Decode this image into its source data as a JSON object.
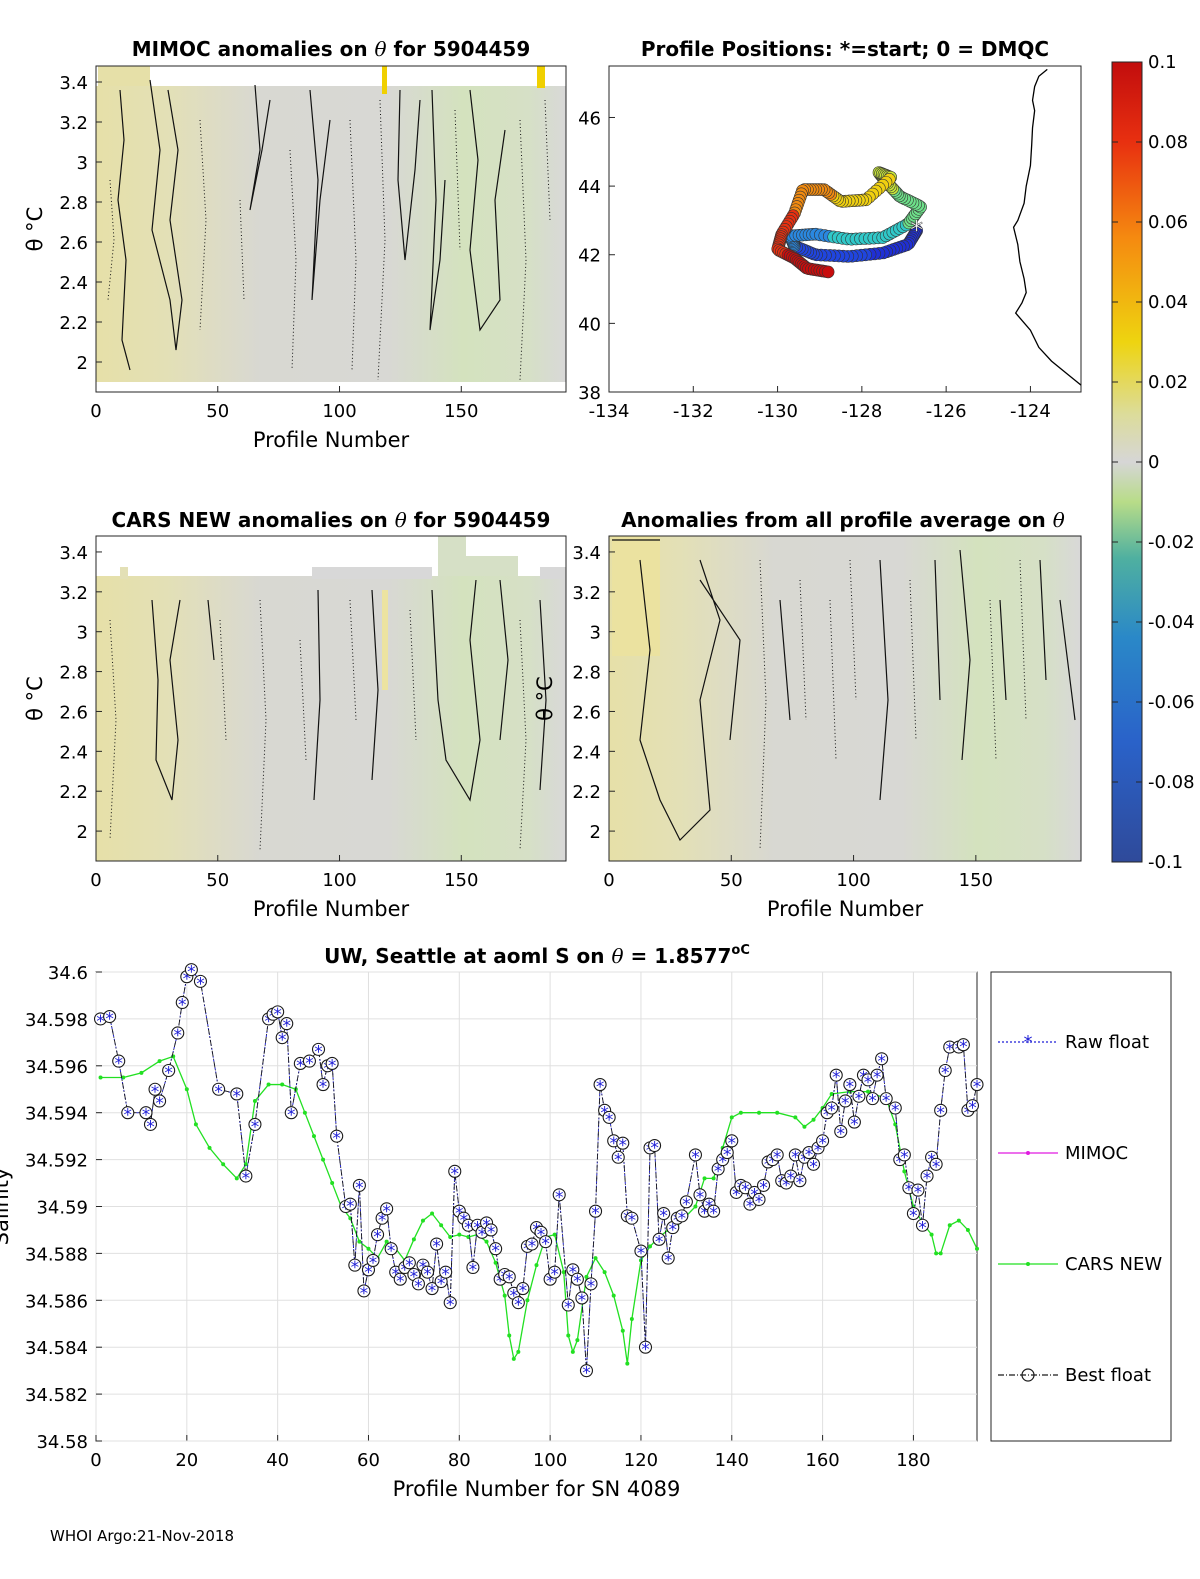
{
  "footer": "WHOI Argo:21-Nov-2018",
  "chart_data": [
    {
      "id": "mimoc",
      "type": "heatmap",
      "title_prefix": "MIMOC anomalies on ",
      "title_theta": "θ",
      "title_suffix": "  for 5904459",
      "xlabel": "Profile Number",
      "ylabel": "θ °C",
      "xlim": [
        0,
        193
      ],
      "ylim": [
        1.85,
        3.48
      ],
      "xticks": [
        "0",
        "50",
        "100",
        "150"
      ],
      "xtick_values": [
        0,
        50,
        100,
        150
      ],
      "yticks": [
        "2",
        "2.2",
        "2.4",
        "2.6",
        "2.8",
        "3",
        "3.2",
        "3.4"
      ],
      "ytick_values": [
        2,
        2.2,
        2.4,
        2.6,
        2.8,
        3,
        3.2,
        3.4
      ]
    },
    {
      "id": "positions",
      "type": "scatter",
      "title": "Profile Positions: *=start; 0 = DMQC",
      "xlim": [
        -134,
        -122.8
      ],
      "ylim": [
        38,
        47.5
      ],
      "xticks": [
        "-134",
        "-132",
        "-130",
        "-128",
        "-126",
        "-124"
      ],
      "xtick_values": [
        -134,
        -132,
        -130,
        -128,
        -126,
        -124
      ],
      "yticks": [
        "38",
        "40",
        "42",
        "44",
        "46"
      ],
      "ytick_values": [
        38,
        40,
        42,
        44,
        46
      ],
      "start": [
        -126.7,
        42.75
      ],
      "coast": [
        [
          -123.6,
          47.4
        ],
        [
          -123.8,
          47.2
        ],
        [
          -123.9,
          46.9
        ],
        [
          -123.95,
          46.5
        ],
        [
          -123.9,
          46.2
        ],
        [
          -123.95,
          45.7
        ],
        [
          -123.97,
          45.2
        ],
        [
          -124.0,
          44.6
        ],
        [
          -124.1,
          44.0
        ],
        [
          -124.15,
          43.5
        ],
        [
          -124.3,
          43.0
        ],
        [
          -124.4,
          42.8
        ],
        [
          -124.3,
          42.3
        ],
        [
          -124.25,
          41.8
        ],
        [
          -124.15,
          41.3
        ],
        [
          -124.1,
          40.9
        ],
        [
          -124.2,
          40.6
        ],
        [
          -124.35,
          40.3
        ],
        [
          -124.0,
          39.8
        ],
        [
          -123.8,
          39.3
        ],
        [
          -123.5,
          38.9
        ],
        [
          -123.1,
          38.5
        ],
        [
          -122.8,
          38.2
        ]
      ]
    },
    {
      "id": "cars",
      "type": "heatmap",
      "title_prefix": "CARS NEW anomalies on ",
      "title_theta": "θ",
      "title_suffix": " for 5904459",
      "xlabel": "Profile Number",
      "ylabel": "θ °C",
      "xlim": [
        0,
        193
      ],
      "ylim": [
        1.85,
        3.48
      ],
      "xticks": [
        "0",
        "50",
        "100",
        "150"
      ],
      "xtick_values": [
        0,
        50,
        100,
        150
      ],
      "yticks": [
        "2",
        "2.2",
        "2.4",
        "2.6",
        "2.8",
        "3",
        "3.2",
        "3.4"
      ],
      "ytick_values": [
        2,
        2.2,
        2.4,
        2.6,
        2.8,
        3,
        3.2,
        3.4
      ]
    },
    {
      "id": "allavg",
      "type": "heatmap",
      "title_prefix": "Anomalies from all profile average on ",
      "title_theta": "θ",
      "title_suffix": "",
      "xlabel": "Profile Number",
      "ylabel": "θ °C",
      "xlim": [
        0,
        193
      ],
      "ylim": [
        1.85,
        3.48
      ],
      "xticks": [
        "0",
        "50",
        "100",
        "150"
      ],
      "xtick_values": [
        0,
        50,
        100,
        150
      ],
      "yticks": [
        "2",
        "2.2",
        "2.4",
        "2.6",
        "2.8",
        "3",
        "3.2",
        "3.4"
      ],
      "ytick_values": [
        2,
        2.2,
        2.4,
        2.6,
        2.8,
        3,
        3.2,
        3.4
      ]
    },
    {
      "id": "colorbar",
      "type": "colorbar",
      "range": [
        -0.1,
        0.1
      ],
      "tick_labels": [
        "0.1",
        "0.08",
        "0.06",
        "0.04",
        "0.02",
        "0",
        "-0.02",
        "-0.04",
        "-0.06",
        "-0.08",
        "-0.1"
      ],
      "tick_values": [
        0.1,
        0.08,
        0.06,
        0.04,
        0.02,
        0,
        -0.02,
        -0.04,
        -0.06,
        -0.08,
        -0.1
      ]
    },
    {
      "id": "salinity",
      "type": "line",
      "title_prefix": "UW, Seattle at aoml S on ",
      "title_theta": "θ",
      "title_suffix": " = 1.8577",
      "title_unit": "oC",
      "xlabel": "Profile Number for SN 4089",
      "ylabel": "Salinity",
      "xlim": [
        0,
        194
      ],
      "ylim": [
        34.58,
        34.6
      ],
      "xticks": [
        "0",
        "20",
        "40",
        "60",
        "80",
        "100",
        "120",
        "140",
        "160",
        "180"
      ],
      "xtick_values": [
        0,
        20,
        40,
        60,
        80,
        100,
        120,
        140,
        160,
        180
      ],
      "yticks": [
        "34.58",
        "34.582",
        "34.584",
        "34.586",
        "34.588",
        "34.59",
        "34.592",
        "34.594",
        "34.596",
        "34.598",
        "34.6"
      ],
      "ytick_values": [
        34.58,
        34.582,
        34.584,
        34.586,
        34.588,
        34.59,
        34.592,
        34.594,
        34.596,
        34.598,
        34.6
      ],
      "legend": [
        "Raw float",
        "MIMOC",
        "CARS NEW",
        "Best float"
      ],
      "legend_colors": [
        "#1f1fd6",
        "#e01be0",
        "#22e022",
        "#1a1a1a"
      ],
      "cars_series": [
        [
          1,
          34.5955
        ],
        [
          6,
          34.5955
        ],
        [
          10,
          34.5957
        ],
        [
          14,
          34.5962
        ],
        [
          17,
          34.5964
        ],
        [
          20,
          34.595
        ],
        [
          22,
          34.5935
        ],
        [
          25,
          34.5925
        ],
        [
          28,
          34.5918
        ],
        [
          31,
          34.5912
        ],
        [
          33,
          34.5918
        ],
        [
          35,
          34.5945
        ],
        [
          38,
          34.5952
        ],
        [
          41,
          34.5952
        ],
        [
          44,
          34.595
        ],
        [
          46,
          34.594
        ],
        [
          48,
          34.593
        ],
        [
          50,
          34.592
        ],
        [
          52,
          34.591
        ],
        [
          54,
          34.59
        ],
        [
          56,
          34.5895
        ],
        [
          58,
          34.5885
        ],
        [
          60,
          34.5882
        ],
        [
          62,
          34.5878
        ],
        [
          64,
          34.5885
        ],
        [
          66,
          34.5882
        ],
        [
          68,
          34.5877
        ],
        [
          70,
          34.5886
        ],
        [
          72,
          34.5894
        ],
        [
          74,
          34.5897
        ],
        [
          76,
          34.5892
        ],
        [
          78,
          34.5887
        ],
        [
          80,
          34.5888
        ],
        [
          82,
          34.5887
        ],
        [
          84,
          34.5888
        ],
        [
          86,
          34.5885
        ],
        [
          88,
          34.5876
        ],
        [
          90,
          34.5862
        ],
        [
          91,
          34.5845
        ],
        [
          92,
          34.5835
        ],
        [
          93,
          34.5838
        ],
        [
          95,
          34.586
        ],
        [
          97,
          34.5875
        ],
        [
          99,
          34.5887
        ],
        [
          101,
          34.5888
        ],
        [
          103,
          34.5872
        ],
        [
          104,
          34.5845
        ],
        [
          105,
          34.5838
        ],
        [
          106,
          34.5843
        ],
        [
          108,
          34.587
        ],
        [
          110,
          34.5878
        ],
        [
          112,
          34.5872
        ],
        [
          114,
          34.5862
        ],
        [
          116,
          34.5847
        ],
        [
          117,
          34.5833
        ],
        [
          118,
          34.5852
        ],
        [
          120,
          34.5877
        ],
        [
          122,
          34.5883
        ],
        [
          124,
          34.5887
        ],
        [
          126,
          34.589
        ],
        [
          128,
          34.5892
        ],
        [
          130,
          34.5896
        ],
        [
          132,
          34.59
        ],
        [
          134,
          34.5912
        ],
        [
          136,
          34.5912
        ],
        [
          138,
          34.5925
        ],
        [
          140,
          34.5938
        ],
        [
          142,
          34.594
        ],
        [
          146,
          34.594
        ],
        [
          150,
          34.594
        ],
        [
          154,
          34.5938
        ],
        [
          156,
          34.5934
        ],
        [
          158,
          34.5937
        ],
        [
          160,
          34.5942
        ],
        [
          162,
          34.5948
        ],
        [
          166,
          34.5949
        ],
        [
          170,
          34.5949
        ],
        [
          174,
          34.5946
        ],
        [
          176,
          34.5935
        ],
        [
          178,
          34.5915
        ],
        [
          180,
          34.59
        ],
        [
          182,
          34.5893
        ],
        [
          184,
          34.5888
        ],
        [
          185,
          34.588
        ],
        [
          186,
          34.588
        ],
        [
          188,
          34.5892
        ],
        [
          190,
          34.5894
        ],
        [
          192,
          34.589
        ],
        [
          194,
          34.5882
        ]
      ],
      "float_series": [
        [
          1,
          34.598
        ],
        [
          3,
          34.5981
        ],
        [
          5,
          34.5962
        ],
        [
          7,
          34.594
        ],
        [
          11,
          34.594
        ],
        [
          12,
          34.5935
        ],
        [
          13,
          34.595
        ],
        [
          14,
          34.5945
        ],
        [
          16,
          34.5958
        ],
        [
          18,
          34.5974
        ],
        [
          19,
          34.5987
        ],
        [
          20,
          34.5998
        ],
        [
          21,
          34.6001
        ],
        [
          23,
          34.5996
        ],
        [
          27,
          34.595
        ],
        [
          31,
          34.5948
        ],
        [
          33,
          34.5913
        ],
        [
          35,
          34.5935
        ],
        [
          38,
          34.598
        ],
        [
          39,
          34.5982
        ],
        [
          40,
          34.5983
        ],
        [
          41,
          34.5972
        ],
        [
          42,
          34.5978
        ],
        [
          43,
          34.594
        ],
        [
          45,
          34.5961
        ],
        [
          47,
          34.5962
        ],
        [
          49,
          34.5967
        ],
        [
          50,
          34.5952
        ],
        [
          51,
          34.596
        ],
        [
          52,
          34.5961
        ],
        [
          53,
          34.593
        ],
        [
          55,
          34.59
        ],
        [
          56,
          34.5901
        ],
        [
          57,
          34.5875
        ],
        [
          58,
          34.5909
        ],
        [
          59,
          34.5864
        ],
        [
          60,
          34.5873
        ],
        [
          61,
          34.5877
        ],
        [
          62,
          34.5888
        ],
        [
          63,
          34.5895
        ],
        [
          64,
          34.5899
        ],
        [
          65,
          34.5882
        ],
        [
          66,
          34.5872
        ],
        [
          67,
          34.5869
        ],
        [
          68,
          34.5874
        ],
        [
          69,
          34.5876
        ],
        [
          70,
          34.5871
        ],
        [
          71,
          34.5867
        ],
        [
          72,
          34.5875
        ],
        [
          73,
          34.5872
        ],
        [
          74,
          34.5865
        ],
        [
          75,
          34.5884
        ],
        [
          76,
          34.5868
        ],
        [
          77,
          34.5872
        ],
        [
          78,
          34.5859
        ],
        [
          79,
          34.5915
        ],
        [
          80,
          34.5898
        ],
        [
          81,
          34.5895
        ],
        [
          82,
          34.5892
        ],
        [
          83,
          34.5874
        ],
        [
          84,
          34.5892
        ],
        [
          85,
          34.5889
        ],
        [
          86,
          34.5893
        ],
        [
          87,
          34.589
        ],
        [
          88,
          34.5882
        ],
        [
          89,
          34.5869
        ],
        [
          90,
          34.5871
        ],
        [
          91,
          34.587
        ],
        [
          92,
          34.5863
        ],
        [
          93,
          34.5859
        ],
        [
          94,
          34.5865
        ],
        [
          95,
          34.5883
        ],
        [
          96,
          34.5884
        ],
        [
          97,
          34.5891
        ],
        [
          98,
          34.5889
        ],
        [
          99,
          34.5885
        ],
        [
          100,
          34.5869
        ],
        [
          101,
          34.5872
        ],
        [
          102,
          34.5905
        ],
        [
          104,
          34.5858
        ],
        [
          105,
          34.5873
        ],
        [
          106,
          34.5869
        ],
        [
          107,
          34.5861
        ],
        [
          108,
          34.583
        ],
        [
          109,
          34.5867
        ],
        [
          110,
          34.5898
        ],
        [
          111,
          34.5952
        ],
        [
          112,
          34.5941
        ],
        [
          113,
          34.5938
        ],
        [
          114,
          34.5928
        ],
        [
          115,
          34.5921
        ],
        [
          116,
          34.5927
        ],
        [
          117,
          34.5896
        ],
        [
          118,
          34.5895
        ],
        [
          120,
          34.5881
        ],
        [
          121,
          34.584
        ],
        [
          122,
          34.5925
        ],
        [
          123,
          34.5926
        ],
        [
          124,
          34.5886
        ],
        [
          125,
          34.5897
        ],
        [
          126,
          34.5878
        ],
        [
          127,
          34.5891
        ],
        [
          128,
          34.5895
        ],
        [
          129,
          34.5896
        ],
        [
          130,
          34.5902
        ],
        [
          132,
          34.5922
        ],
        [
          133,
          34.5905
        ],
        [
          134,
          34.5898
        ],
        [
          135,
          34.5901
        ],
        [
          136,
          34.5898
        ],
        [
          137,
          34.5916
        ],
        [
          138,
          34.592
        ],
        [
          139,
          34.5923
        ],
        [
          140,
          34.5928
        ],
        [
          141,
          34.5906
        ],
        [
          142,
          34.5909
        ],
        [
          143,
          34.5908
        ],
        [
          144,
          34.5901
        ],
        [
          145,
          34.5906
        ],
        [
          146,
          34.5903
        ],
        [
          147,
          34.5909
        ],
        [
          148,
          34.5919
        ],
        [
          149,
          34.592
        ],
        [
          150,
          34.5922
        ],
        [
          151,
          34.5911
        ],
        [
          152,
          34.591
        ],
        [
          153,
          34.5913
        ],
        [
          154,
          34.5922
        ],
        [
          155,
          34.5911
        ],
        [
          156,
          34.5921
        ],
        [
          157,
          34.5923
        ],
        [
          158,
          34.5918
        ],
        [
          159,
          34.5925
        ],
        [
          160,
          34.5928
        ],
        [
          161,
          34.594
        ],
        [
          162,
          34.5942
        ],
        [
          163,
          34.5956
        ],
        [
          164,
          34.5932
        ],
        [
          165,
          34.5945
        ],
        [
          166,
          34.5952
        ],
        [
          167,
          34.5936
        ],
        [
          168,
          34.5947
        ],
        [
          169,
          34.5956
        ],
        [
          170,
          34.5954
        ],
        [
          171,
          34.5946
        ],
        [
          172,
          34.5956
        ],
        [
          173,
          34.5963
        ],
        [
          174,
          34.5946
        ],
        [
          176,
          34.5942
        ],
        [
          177,
          34.592
        ],
        [
          178,
          34.5922
        ],
        [
          179,
          34.5908
        ],
        [
          180,
          34.5897
        ],
        [
          181,
          34.5907
        ],
        [
          182,
          34.5892
        ],
        [
          183,
          34.5913
        ],
        [
          184,
          34.5921
        ],
        [
          185,
          34.5918
        ],
        [
          186,
          34.5941
        ],
        [
          187,
          34.5958
        ],
        [
          188,
          34.5968
        ],
        [
          190,
          34.5968
        ],
        [
          191,
          34.5969
        ],
        [
          192,
          34.5941
        ],
        [
          193,
          34.5943
        ],
        [
          194,
          34.5952
        ]
      ]
    }
  ]
}
